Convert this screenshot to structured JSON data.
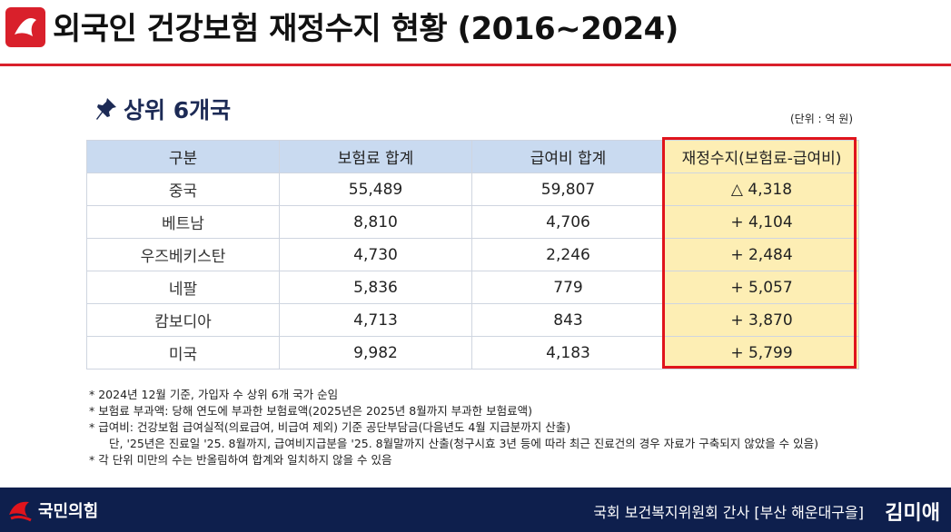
{
  "header": {
    "title": "외국인 건강보험 재정수지 현황 (2016~2024)"
  },
  "section": {
    "heading": "상위 6개국",
    "unit": "(단위 : 억 원)"
  },
  "table": {
    "columns": [
      "구분",
      "보험료 합계",
      "급여비 합계",
      "재정수지(보험료-급여비)"
    ],
    "rows": [
      {
        "country": "중국",
        "premium": "55,489",
        "benefit": "59,807",
        "balance": "△ 4,318",
        "sign": "neg"
      },
      {
        "country": "베트남",
        "premium": "8,810",
        "benefit": "4,706",
        "balance": "+ 4,104",
        "sign": "pos"
      },
      {
        "country": "우즈베키스탄",
        "premium": "4,730",
        "benefit": "2,246",
        "balance": "+ 2,484",
        "sign": "pos"
      },
      {
        "country": "네팔",
        "premium": "5,836",
        "benefit": "779",
        "balance": "+ 5,057",
        "sign": "pos"
      },
      {
        "country": "캄보디아",
        "premium": "4,713",
        "benefit": "843",
        "balance": "+ 3,870",
        "sign": "pos"
      },
      {
        "country": "미국",
        "premium": "9,982",
        "benefit": "4,183",
        "balance": "+ 5,799",
        "sign": "pos"
      }
    ]
  },
  "notes": [
    "* 2024년 12월 기준, 가입자 수 상위 6개 국가 순임",
    "* 보험료 부과액: 당해 연도에 부과한 보험료액(2025년은 2025년 8월까지 부과한 보험료액)",
    "* 급여비: 건강보험 급여실적(의료급여, 비급여 제외) 기준 공단부담금(다음년도 4월 지급분까지 산출)",
    "단, '25년은 진료일 '25. 8월까지, 급여비지급분을 '25. 8월말까지 산출(청구시효 3년 등에 따라 최근 진료건의 경우 자료가 구축되지 않았을 수 있음)",
    "* 각 단위 미만의 수는 반올림하여 합계와 일치하지 않을 수 있음"
  ],
  "footer": {
    "party": "국민의힘",
    "role": "국회 보건복지위원회 간사 [부산 해운대구을]",
    "name": "김미애"
  },
  "colors": {
    "accent_red": "#d9202b",
    "navy": "#0e1f4d",
    "header_blue": "#c9daf0",
    "balance_yellow": "#fdeeb4"
  }
}
